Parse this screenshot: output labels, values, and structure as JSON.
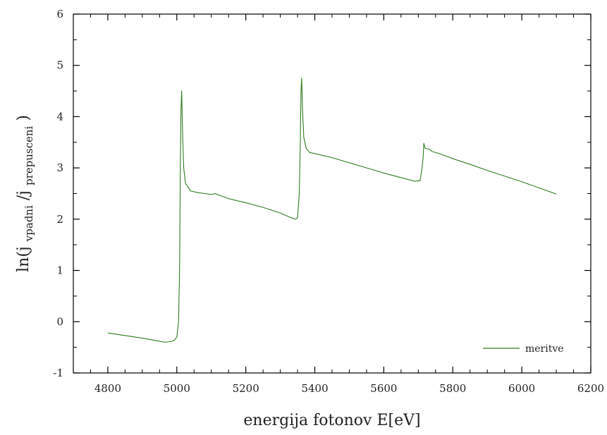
{
  "chart_data": {
    "type": "line",
    "title": "",
    "xlabel": "energija fotonov E[eV]",
    "ylabel": {
      "prefix": "ln(j",
      "sub1": "vpadni",
      "mid": "/j",
      "sub2": "prepusceni",
      "suffix": ")"
    },
    "xlim": [
      4700,
      6200
    ],
    "ylim": [
      -1,
      6
    ],
    "xticks": [
      4800,
      5000,
      5200,
      5400,
      5600,
      5800,
      6000,
      6200
    ],
    "yticks": [
      -1,
      0,
      1,
      2,
      3,
      4,
      5,
      6
    ],
    "x_minor_step": 50,
    "y_minor_step": 0.5,
    "grid": false,
    "legend": {
      "position": "bottom-right"
    },
    "series": [
      {
        "name": "meritve",
        "color": "#2e7d1f",
        "points": [
          [
            4800,
            -0.22
          ],
          [
            4850,
            -0.27
          ],
          [
            4900,
            -0.32
          ],
          [
            4940,
            -0.37
          ],
          [
            4965,
            -0.4
          ],
          [
            4980,
            -0.39
          ],
          [
            4992,
            -0.37
          ],
          [
            5000,
            -0.3
          ],
          [
            5005,
            0.0
          ],
          [
            5008,
            1.0
          ],
          [
            5010,
            2.8
          ],
          [
            5012,
            4.1
          ],
          [
            5014,
            4.5
          ],
          [
            5017,
            3.6
          ],
          [
            5020,
            3.0
          ],
          [
            5025,
            2.7
          ],
          [
            5030,
            2.65
          ],
          [
            5040,
            2.55
          ],
          [
            5060,
            2.52
          ],
          [
            5080,
            2.5
          ],
          [
            5100,
            2.48
          ],
          [
            5110,
            2.5
          ],
          [
            5150,
            2.4
          ],
          [
            5200,
            2.32
          ],
          [
            5250,
            2.23
          ],
          [
            5300,
            2.12
          ],
          [
            5330,
            2.03
          ],
          [
            5345,
            2.0
          ],
          [
            5350,
            2.03
          ],
          [
            5355,
            2.5
          ],
          [
            5358,
            3.5
          ],
          [
            5360,
            4.5
          ],
          [
            5362,
            4.75
          ],
          [
            5364,
            4.2
          ],
          [
            5368,
            3.6
          ],
          [
            5375,
            3.38
          ],
          [
            5385,
            3.3
          ],
          [
            5400,
            3.28
          ],
          [
            5450,
            3.2
          ],
          [
            5500,
            3.1
          ],
          [
            5550,
            3.0
          ],
          [
            5600,
            2.9
          ],
          [
            5650,
            2.81
          ],
          [
            5690,
            2.74
          ],
          [
            5705,
            2.75
          ],
          [
            5710,
            2.95
          ],
          [
            5714,
            3.2
          ],
          [
            5716,
            3.48
          ],
          [
            5720,
            3.38
          ],
          [
            5730,
            3.37
          ],
          [
            5740,
            3.32
          ],
          [
            5760,
            3.28
          ],
          [
            5800,
            3.18
          ],
          [
            5850,
            3.07
          ],
          [
            5900,
            2.95
          ],
          [
            5950,
            2.84
          ],
          [
            6000,
            2.73
          ],
          [
            6050,
            2.61
          ],
          [
            6100,
            2.49
          ]
        ]
      }
    ]
  }
}
